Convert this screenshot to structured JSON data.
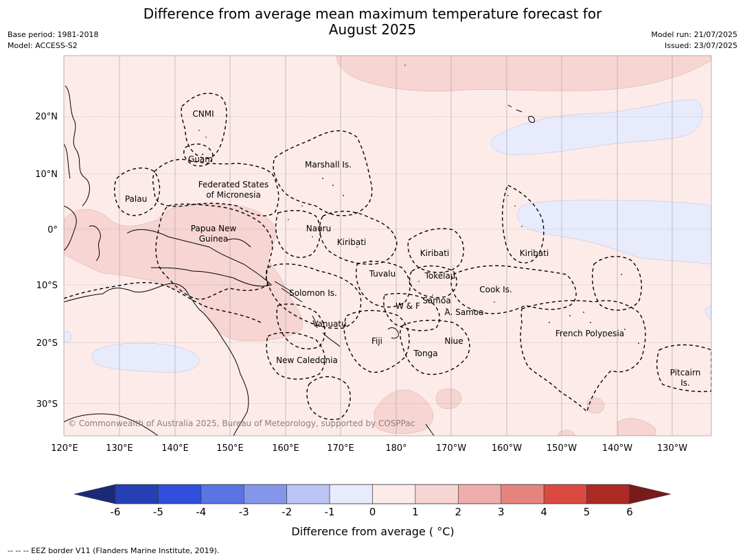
{
  "title": {
    "line1": "Difference from average mean maximum temperature forecast for",
    "line2": "August 2025"
  },
  "meta_left": {
    "base_period": "Base period: 1981-2018",
    "model": "Model: ACCESS-S2"
  },
  "meta_right": {
    "model_run": "Model run: 21/07/2025",
    "issued": "Issued: 23/07/2025"
  },
  "map": {
    "lat_labels": [
      "20°N",
      "10°N",
      "0°",
      "10°S",
      "20°S",
      "30°S"
    ],
    "lon_labels": [
      "120°E",
      "130°E",
      "140°E",
      "150°E",
      "160°E",
      "170°E",
      "180°",
      "170°W",
      "160°W",
      "150°W",
      "140°W",
      "130°W"
    ],
    "copyright": "© Commonwealth of Australia 2025, Bureau of Meteorology, supported by COSPPac",
    "places": {
      "cnmi": "CNMI",
      "guam": "Guam",
      "marshall": "Marshall Is.",
      "palau": "Palau",
      "fsm_1": "Federated States",
      "fsm_2": "of Micronesia",
      "nauru": "Nauru",
      "png_1": "Papua New",
      "png_2": "Guinea",
      "kiribati_w": "Kiribati",
      "kiribati_c": "Kiribati",
      "kiribati_e": "Kiribati",
      "tuvalu": "Tuvalu",
      "tokelau": "Tokelau",
      "solomon": "Solomon Is.",
      "cook": "Cook Is.",
      "samoa": "Samoa",
      "wf": "W & F",
      "asamoa": "A. Samoa",
      "vanuatu": "Vanuatu",
      "fiji": "Fiji",
      "niue": "Niue",
      "tonga": "Tonga",
      "new_caledonia": "New Caledonia",
      "french_polynesia": "French Polynesia",
      "pitcairn_1": "Pitcairn",
      "pitcairn_2": "Is."
    },
    "colors": {
      "background_anomaly_0_1": "#fcebe9",
      "anomaly_1_2": "#f6d5d3",
      "anomaly_neg1_0": "#e8ebfb"
    }
  },
  "colorbar": {
    "label": "Difference from average ( °C)",
    "ticks": [
      "-6",
      "-5",
      "-4",
      "-3",
      "-2",
      "-1",
      "0",
      "1",
      "2",
      "3",
      "4",
      "5",
      "6"
    ],
    "extend_low_color": "#1b2a78",
    "extend_high_color": "#7a1b1b",
    "bins": [
      {
        "range": "-6 to -5",
        "color": "#253fb4"
      },
      {
        "range": "-5 to -4",
        "color": "#304fdd"
      },
      {
        "range": "-4 to -3",
        "color": "#5a74e2"
      },
      {
        "range": "-3 to -2",
        "color": "#8496ea"
      },
      {
        "range": "-2 to -1",
        "color": "#bcc5f3"
      },
      {
        "range": "-1 to 0",
        "color": "#e8ebfb"
      },
      {
        "range": "0 to 1",
        "color": "#fcebe9"
      },
      {
        "range": "1 to 2",
        "color": "#f6d5d3"
      },
      {
        "range": "2 to 3",
        "color": "#eeadaa"
      },
      {
        "range": "3 to 4",
        "color": "#e5837f"
      },
      {
        "range": "4 to 5",
        "color": "#da4a41"
      },
      {
        "range": "5 to 6",
        "color": "#ad2a24"
      }
    ]
  },
  "footnote": "--  --  -- EEZ border V11 (Flanders Marine Institute, 2019)."
}
